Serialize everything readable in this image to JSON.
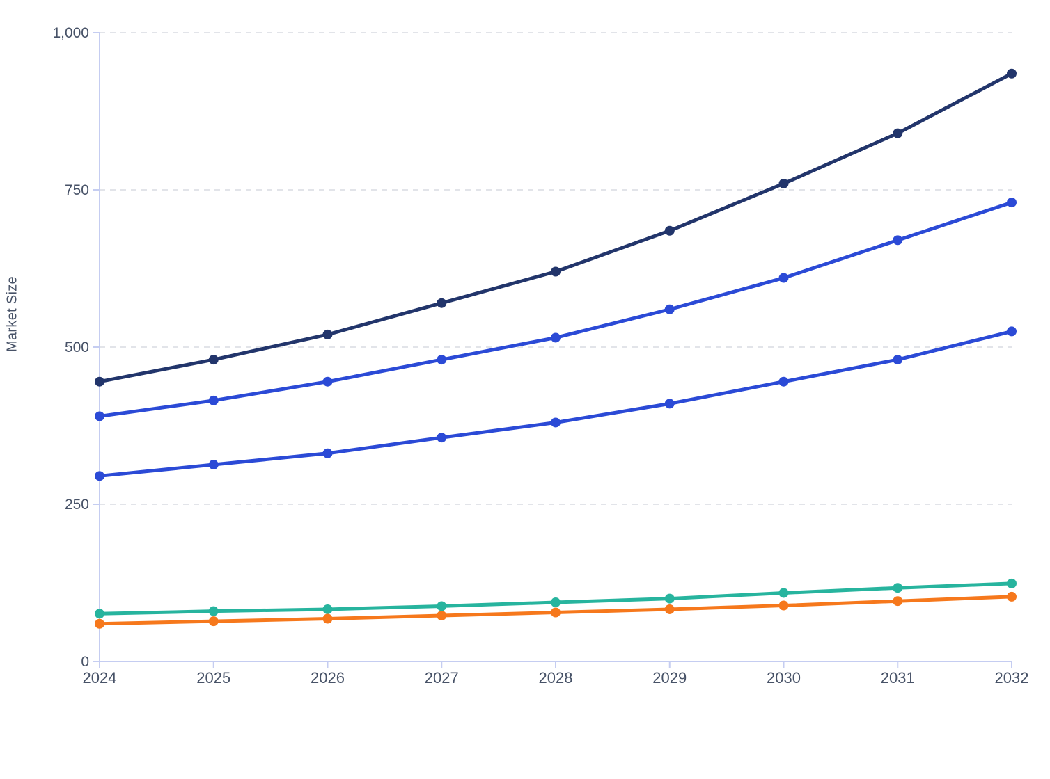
{
  "chart_data": {
    "type": "line",
    "title": "",
    "xlabel": "",
    "ylabel": "Market Size",
    "x": [
      2024,
      2025,
      2026,
      2027,
      2028,
      2029,
      2030,
      2031,
      2032
    ],
    "x_tick_labels": [
      "2024",
      "2025",
      "2026",
      "2027",
      "2028",
      "2029",
      "2030",
      "2031",
      "2032"
    ],
    "ylim": [
      0,
      1000
    ],
    "yticks": [
      0,
      250,
      500,
      750,
      1000
    ],
    "y_tick_labels": [
      "0",
      "250",
      "500",
      "750",
      "1,000"
    ],
    "grid": "horizontal-dashed",
    "legend_position": "none",
    "series": [
      {
        "name": "line-1",
        "color": "#22356b",
        "values": [
          445,
          480,
          520,
          570,
          620,
          685,
          760,
          840,
          935
        ]
      },
      {
        "name": "line-2",
        "color": "#2b4ad6",
        "values": [
          390,
          415,
          445,
          480,
          515,
          560,
          610,
          670,
          730
        ]
      },
      {
        "name": "line-3",
        "color": "#2b4ad6",
        "values": [
          295,
          313,
          331,
          356,
          380,
          410,
          445,
          480,
          525
        ]
      },
      {
        "name": "line-4",
        "color": "#27b49e",
        "values": [
          76,
          80,
          83,
          88,
          94,
          100,
          109,
          117,
          124
        ]
      },
      {
        "name": "line-5",
        "color": "#f6781c",
        "values": [
          60,
          64,
          68,
          73,
          78,
          83,
          89,
          96,
          103
        ]
      }
    ],
    "colors": {
      "axis_line": "#c5cdf1",
      "gridline": "#e2e4e9",
      "tick_text": "#475267",
      "background": "#ffffff"
    }
  }
}
